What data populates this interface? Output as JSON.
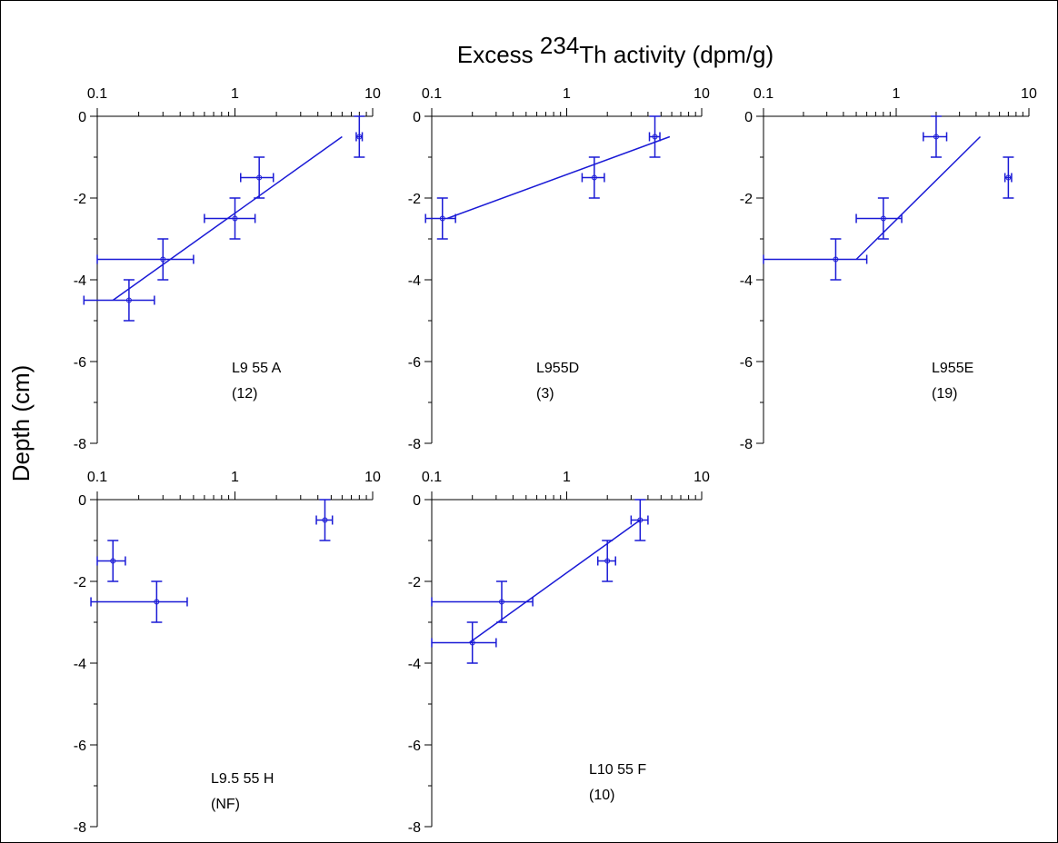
{
  "title": [
    "Excess ",
    "234",
    "Th activity (dpm/g)"
  ],
  "ylabel": "Depth (cm)",
  "chart_data": [
    {
      "type": "scatter",
      "label": [
        "L9 55 A",
        "(12)"
      ],
      "color": "#1a1ad6",
      "xscale": "log",
      "xlim": [
        0.1,
        10
      ],
      "ylim": [
        0,
        -8
      ],
      "xticks": [
        0.1,
        1,
        10
      ],
      "yticks": [
        0,
        -2,
        -4,
        -6,
        -8
      ],
      "xminor": [
        0.2,
        0.3,
        0.4,
        0.5,
        0.6,
        0.7,
        0.8,
        0.9,
        2,
        3,
        4,
        5,
        6,
        7,
        8,
        9
      ],
      "yminor": [
        -1,
        -3,
        -5,
        -7
      ],
      "x": [
        8,
        1.5,
        1.0,
        0.3,
        0.17
      ],
      "y": [
        -0.5,
        -1.5,
        -2.5,
        -3.5,
        -4.5
      ],
      "xerr": [
        0.4,
        0.4,
        0.4,
        0.2,
        0.09
      ],
      "yerr": [
        0.5,
        0.5,
        0.5,
        0.5,
        0.5
      ],
      "fit": {
        "x": [
          0.13,
          6
        ],
        "y": [
          -4.5,
          -0.5
        ]
      }
    },
    {
      "type": "scatter",
      "label": [
        "L955D",
        "(3)"
      ],
      "color": "#1a1ad6",
      "xscale": "log",
      "xlim": [
        0.1,
        10
      ],
      "ylim": [
        0,
        -8
      ],
      "xticks": [
        0.1,
        1,
        10
      ],
      "yticks": [
        0,
        -2,
        -4,
        -6,
        -8
      ],
      "xminor": [
        0.2,
        0.3,
        0.4,
        0.5,
        0.6,
        0.7,
        0.8,
        0.9,
        2,
        3,
        4,
        5,
        6,
        7,
        8,
        9
      ],
      "yminor": [
        -1,
        -3,
        -5,
        -7
      ],
      "x": [
        4.5,
        1.6,
        0.12
      ],
      "y": [
        -0.5,
        -1.5,
        -2.5
      ],
      "xerr": [
        0.4,
        0.3,
        0.03
      ],
      "yerr": [
        0.5,
        0.5,
        0.5
      ],
      "fit": {
        "x": [
          0.13,
          5.8
        ],
        "y": [
          -2.5,
          -0.5
        ]
      }
    },
    {
      "type": "scatter",
      "label": [
        "L955E",
        "(19)"
      ],
      "color": "#1a1ad6",
      "xscale": "log",
      "xlim": [
        0.1,
        10
      ],
      "ylim": [
        0,
        -8
      ],
      "xticks": [
        0.1,
        1,
        10
      ],
      "yticks": [
        0,
        -2,
        -4,
        -6,
        -8
      ],
      "xminor": [
        0.2,
        0.3,
        0.4,
        0.5,
        0.6,
        0.7,
        0.8,
        0.9,
        2,
        3,
        4,
        5,
        6,
        7,
        8,
        9
      ],
      "yminor": [
        -1,
        -3,
        -5,
        -7
      ],
      "x": [
        2,
        7,
        0.8,
        0.35
      ],
      "y": [
        -0.5,
        -1.5,
        -2.5,
        -3.5
      ],
      "xerr": [
        0.4,
        0.4,
        0.3,
        0.25
      ],
      "yerr": [
        0.5,
        0.5,
        0.5,
        0.5
      ],
      "fit": {
        "x": [
          0.5,
          4.3
        ],
        "y": [
          -3.5,
          -0.5
        ]
      }
    },
    {
      "type": "scatter",
      "label": [
        "L9.5 55 H",
        "(NF)"
      ],
      "color": "#1a1ad6",
      "xscale": "log",
      "xlim": [
        0.1,
        10
      ],
      "ylim": [
        0,
        -8
      ],
      "xticks": [
        0.1,
        1,
        10
      ],
      "yticks": [
        0,
        -2,
        -4,
        -6,
        -8
      ],
      "xminor": [
        0.2,
        0.3,
        0.4,
        0.5,
        0.6,
        0.7,
        0.8,
        0.9,
        2,
        3,
        4,
        5,
        6,
        7,
        8,
        9
      ],
      "yminor": [
        -1,
        -3,
        -5,
        -7
      ],
      "x": [
        4.5,
        0.13,
        0.27
      ],
      "y": [
        -0.5,
        -1.5,
        -2.5
      ],
      "xerr": [
        0.6,
        0.03,
        0.18
      ],
      "yerr": [
        0.5,
        0.5,
        0.5
      ]
    },
    {
      "type": "scatter",
      "label": [
        "L10 55 F",
        "(10)"
      ],
      "color": "#1a1ad6",
      "xscale": "log",
      "xlim": [
        0.1,
        10
      ],
      "ylim": [
        0,
        -8
      ],
      "xticks": [
        0.1,
        1,
        10
      ],
      "yticks": [
        0,
        -2,
        -4,
        -6,
        -8
      ],
      "xminor": [
        0.2,
        0.3,
        0.4,
        0.5,
        0.6,
        0.7,
        0.8,
        0.9,
        2,
        3,
        4,
        5,
        6,
        7,
        8,
        9
      ],
      "yminor": [
        -1,
        -3,
        -5,
        -7
      ],
      "x": [
        3.5,
        2,
        0.33,
        0.2
      ],
      "y": [
        -0.5,
        -1.5,
        -2.5,
        -3.5
      ],
      "xerr": [
        0.5,
        0.3,
        0.23,
        0.1
      ],
      "yerr": [
        0.5,
        0.5,
        0.5,
        0.5
      ],
      "fit": {
        "x": [
          0.19,
          3.5
        ],
        "y": [
          -3.5,
          -0.5
        ]
      }
    }
  ]
}
